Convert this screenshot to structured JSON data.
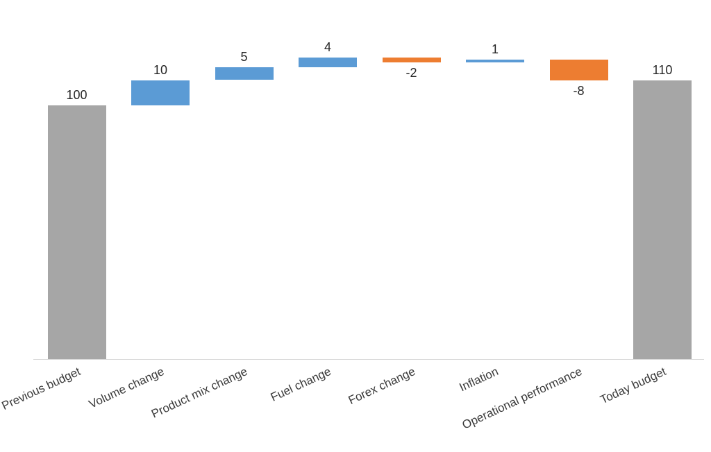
{
  "chart_data": {
    "type": "waterfall",
    "title": "",
    "categories": [
      "Previous budget",
      "Volume change",
      "Product mix change",
      "Fuel change",
      "Forex change",
      "Inflation",
      "Operational performance",
      "Today budget"
    ],
    "values": [
      100,
      10,
      5,
      4,
      -2,
      1,
      -8,
      110
    ],
    "bar_roles": [
      "total",
      "relative",
      "relative",
      "relative",
      "relative",
      "relative",
      "relative",
      "total"
    ],
    "data_labels": [
      "100",
      "10",
      "5",
      "4",
      "-2",
      "1",
      "-8",
      "110"
    ],
    "running_totals": [
      100,
      110,
      115,
      119,
      117,
      118,
      110,
      110
    ],
    "colors": {
      "increase": "#5B9BD5",
      "decrease": "#ED7D31",
      "total": "#A6A6A6",
      "axis_line": "#D9D9D9",
      "data_label_text": "#262626",
      "category_label_text": "#3A3A3A",
      "background": "#FFFFFF"
    },
    "value_axis": {
      "visible": false,
      "min": 0,
      "max": 125
    },
    "category_axis": {
      "visible": true,
      "label_rotation_deg": -25
    },
    "gridlines": false,
    "legend": "none",
    "data_labels_visible": true,
    "negative_labels_below_bar": true
  }
}
